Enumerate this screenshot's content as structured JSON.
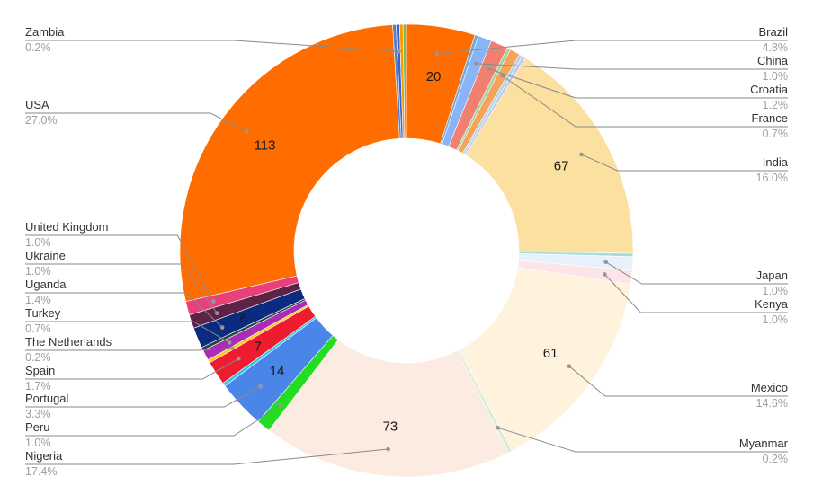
{
  "chart_data": {
    "type": "pie",
    "donut": true,
    "legend": "none",
    "slices": [
      {
        "label": "Brazil",
        "pct": "4.8%",
        "value": 20,
        "value_label": "20",
        "color": "#ff6d01"
      },
      {
        "label": "",
        "pct": "",
        "value": 1,
        "value_label": "",
        "color": "#6fa8dc"
      },
      {
        "label": "China",
        "pct": "1.0%",
        "value": 4,
        "value_label": "",
        "color": "#8ab4f8"
      },
      {
        "label": "Croatia",
        "pct": "1.2%",
        "value": 5,
        "value_label": "",
        "color": "#f08070"
      },
      {
        "label": "",
        "pct": "",
        "value": 1,
        "value_label": "",
        "color": "#9fd3a6"
      },
      {
        "label": "France",
        "pct": "0.7%",
        "value": 3,
        "value_label": "",
        "color": "#f6a35c"
      },
      {
        "label": "",
        "pct": "",
        "value": 1,
        "value_label": "",
        "color": "#a9d8ec"
      },
      {
        "label": "",
        "pct": "",
        "value": 1,
        "value_label": "",
        "color": "#c9c3e8"
      },
      {
        "label": "India",
        "pct": "16.0%",
        "value": 67,
        "value_label": "67",
        "color": "#fbe0a0"
      },
      {
        "label": "",
        "pct": "",
        "value": 1,
        "value_label": "",
        "color": "#a8dcd6"
      },
      {
        "label": "Japan",
        "pct": "1.0%",
        "value": 4,
        "value_label": "",
        "color": "#e6f1fb"
      },
      {
        "label": "Kenya",
        "pct": "1.0%",
        "value": 4,
        "value_label": "",
        "color": "#fce4e8"
      },
      {
        "label": "Mexico",
        "pct": "14.6%",
        "value": 61,
        "value_label": "61",
        "color": "#fff3de"
      },
      {
        "label": "Myanmar",
        "pct": "0.2%",
        "value": 1,
        "value_label": "",
        "color": "#d6ead8"
      },
      {
        "label": "Nigeria",
        "pct": "17.4%",
        "value": 73,
        "value_label": "73",
        "color": "#fcebe0"
      },
      {
        "label": "Peru",
        "pct": "1.0%",
        "value": 4,
        "value_label": "",
        "color": "#22dd22"
      },
      {
        "label": "Portugal",
        "pct": "3.3%",
        "value": 14,
        "value_label": "14",
        "color": "#4a86e8"
      },
      {
        "label": "",
        "pct": "",
        "value": 1,
        "value_label": "",
        "color": "#33c6e6"
      },
      {
        "label": "Spain",
        "pct": "1.7%",
        "value": 7,
        "value_label": "7",
        "color": "#ee1c2e"
      },
      {
        "label": "The Netherlands",
        "pct": "0.2%",
        "value": 1,
        "value_label": "",
        "color": "#ffc61a"
      },
      {
        "label": "Turkey",
        "pct": "0.7%",
        "value": 3,
        "value_label": "",
        "color": "#ab2bb5"
      },
      {
        "label": "",
        "pct": "",
        "value": 1,
        "value_label": "",
        "color": "#1e4a40"
      },
      {
        "label": "Uganda",
        "pct": "1.4%",
        "value": 6,
        "value_label": "6",
        "color": "#0b2a80"
      },
      {
        "label": "Ukraine",
        "pct": "1.0%",
        "value": 4,
        "value_label": "",
        "color": "#5c2346"
      },
      {
        "label": "United Kingdom",
        "pct": "1.0%",
        "value": 4,
        "value_label": "",
        "color": "#e8407a"
      },
      {
        "label": "USA",
        "pct": "27.0%",
        "value": 113,
        "value_label": "113",
        "color": "#ff6d01"
      },
      {
        "label": "",
        "pct": "",
        "value": 1,
        "value_label": "",
        "color": "#5b7ec2"
      },
      {
        "label": "Zambia",
        "pct": "0.2%",
        "value": 1,
        "value_label": "",
        "color": "#3366cc"
      },
      {
        "label": "",
        "pct": "",
        "value": 1,
        "value_label": "",
        "color": "#ff9900"
      },
      {
        "label": "",
        "pct": "",
        "value": 1,
        "value_label": "",
        "color": "#6ac25b"
      }
    ]
  }
}
